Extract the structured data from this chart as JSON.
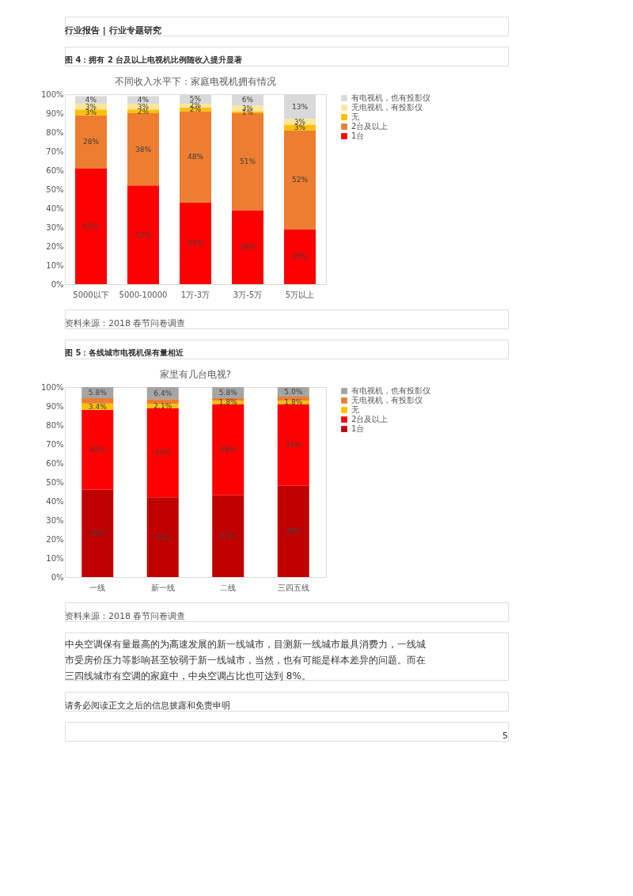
{
  "chart_data": [
    {
      "type": "bar",
      "stacked": true,
      "title": "图 4：拥有 2 台及以上电视机比例随收入提升显著",
      "subtitle": "不同收入水平下：家庭电视机拥有情况",
      "categories": [
        "5000以下",
        "5000-10000",
        "1万-3万",
        "3万-5万",
        "5万以上"
      ],
      "series": [
        {
          "name": "1台",
          "color": "#ff0000",
          "values": [
            61,
            52,
            43,
            39,
            29
          ],
          "value_labels": [
            "61%",
            "52%",
            "43%",
            "39%",
            "29%"
          ]
        },
        {
          "name": "2台及以上",
          "color": "#ed7d31",
          "values": [
            28,
            38,
            48,
            51,
            52
          ],
          "value_labels": [
            "28%",
            "38%",
            "48%",
            "51%",
            "52%"
          ]
        },
        {
          "name": "无",
          "color": "#ffc000",
          "values": [
            3,
            2,
            2,
            1,
            3
          ],
          "value_labels": [
            "3%",
            "2%",
            "2%",
            "1%",
            "3%"
          ]
        },
        {
          "name": "无电视机，有投影仪",
          "color": "#ffe699",
          "values": [
            3,
            3,
            2,
            3,
            3
          ],
          "value_labels": [
            "3%",
            "3%",
            "2%",
            "3%",
            "3%"
          ]
        },
        {
          "name": "有电视机，也有投影仪",
          "color": "#d9d9d9",
          "values": [
            4,
            4,
            5,
            6,
            13
          ],
          "value_labels": [
            "4%",
            "4%",
            "5%",
            "6%",
            "13%"
          ]
        }
      ],
      "ylim": [
        0,
        100
      ],
      "yticks": [
        {
          "value": 0,
          "label": "0%"
        },
        {
          "value": 10,
          "label": "10%"
        },
        {
          "value": 20,
          "label": "20%"
        },
        {
          "value": 30,
          "label": "30%"
        },
        {
          "value": 40,
          "label": "40%"
        },
        {
          "value": 50,
          "label": "50%"
        },
        {
          "value": 60,
          "label": "60%"
        },
        {
          "value": 70,
          "label": "70%"
        },
        {
          "value": 80,
          "label": "80%"
        },
        {
          "value": 90,
          "label": "90%"
        },
        {
          "value": 100,
          "label": "100%"
        }
      ],
      "grid": false,
      "legend": "right",
      "annotations": [
        "行业报告 | 行业专题研究",
        "资料来源：2018 春节问卷调查"
      ]
    },
    {
      "type": "bar",
      "stacked": true,
      "title": "图 5：各线城市电视机保有量相近",
      "subtitle": "家里有几台电视?",
      "categories": [
        "一线",
        "新一线",
        "二线",
        "三四五线"
      ],
      "series": [
        {
          "name": "1台",
          "color": "#c00000",
          "values": [
            46,
            42,
            43,
            48
          ],
          "value_labels": [
            "46%",
            "42%",
            "43%",
            "48%"
          ]
        },
        {
          "name": "2台及以上",
          "color": "#ff0000",
          "values": [
            42,
            47,
            48,
            43
          ],
          "value_labels": [
            "42%",
            "47%",
            "48%",
            "43%"
          ]
        },
        {
          "name": "无",
          "color": "#ffc000",
          "values": [
            3.4,
            2.1,
            1.8,
            1.8
          ],
          "value_labels": [
            "3.4%",
            "2.1%",
            "1.8%",
            "1.8%"
          ]
        },
        {
          "name": "无电视机，有投影仪",
          "color": "#ed7d31",
          "values": [
            2.8,
            2.5,
            1.4,
            2.2
          ]
        },
        {
          "name": "有电视机，也有投影仪",
          "color": "#a5a5a5",
          "values": [
            5.8,
            6.4,
            5.8,
            5.0
          ],
          "value_labels": [
            "5.8%",
            "6.4%",
            "5.8%",
            "5.0%"
          ]
        }
      ],
      "ylim": [
        0,
        100
      ],
      "yticks": [
        {
          "value": 0,
          "label": "0%"
        },
        {
          "value": 10,
          "label": "10%"
        },
        {
          "value": 20,
          "label": "20%"
        },
        {
          "value": 30,
          "label": "30%"
        },
        {
          "value": 40,
          "label": "40%"
        },
        {
          "value": 50,
          "label": "50%"
        },
        {
          "value": 60,
          "label": "60%"
        },
        {
          "value": 70,
          "label": "70%"
        },
        {
          "value": 80,
          "label": "80%"
        },
        {
          "value": 90,
          "label": "90%"
        },
        {
          "value": 100,
          "label": "100%"
        }
      ],
      "grid": false,
      "legend": "right",
      "annotations": [
        "资料来源：2018 春节问卷调查",
        "中央空调保有量最高的为高速发展的新一线城市，目测新一线城市最具消费力，一线城市受房价压力等影响甚至较弱于新一线城市，当然，也有可能是样本差异的问题。而在三四线城市有空调的家庭中，中央空调占比也可达到 8%。",
        "请务必阅读正文之后的信息披露和免责申明",
        "5"
      ]
    }
  ]
}
